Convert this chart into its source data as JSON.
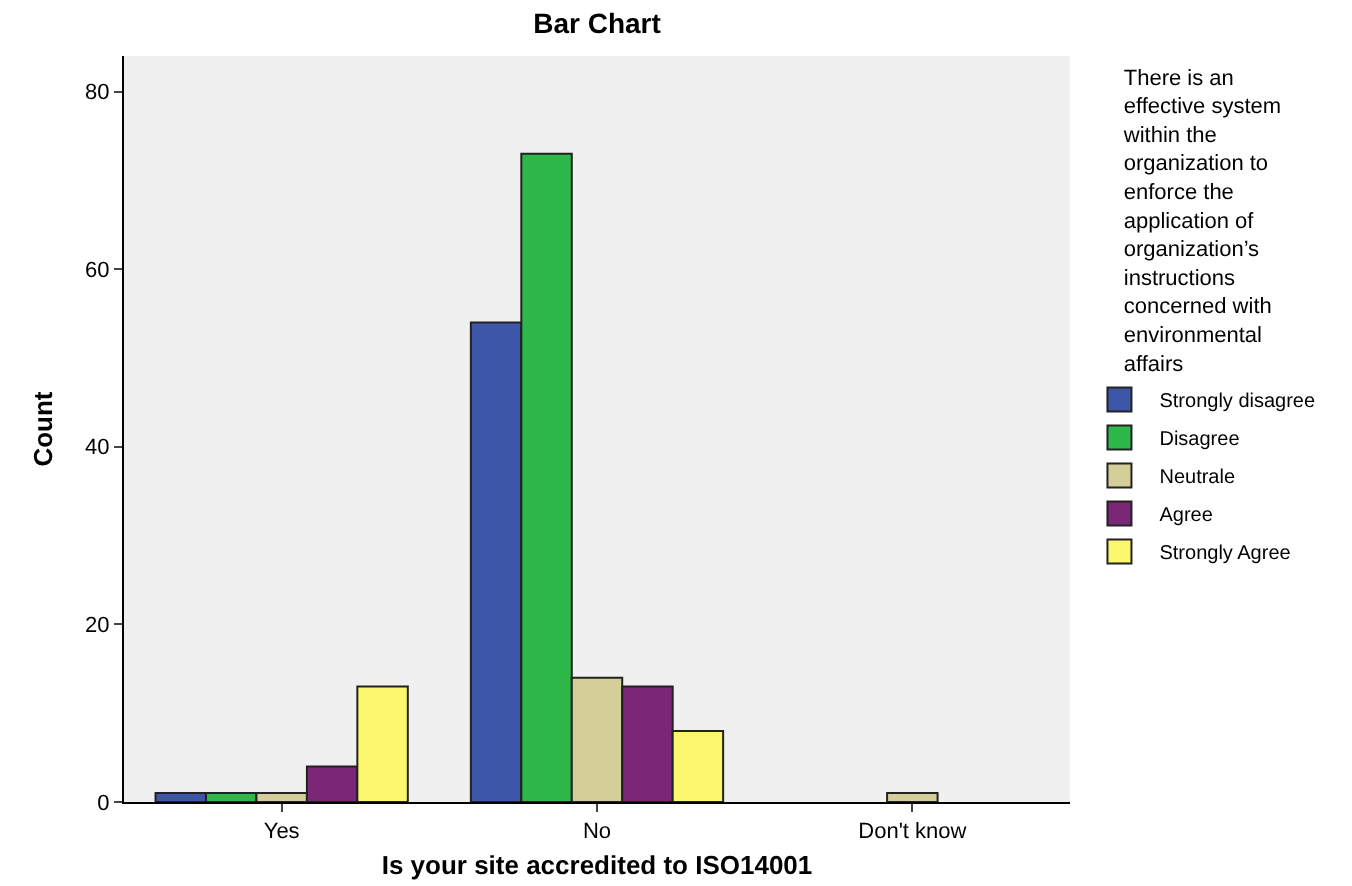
{
  "chart_data": {
    "type": "bar",
    "title": "Bar Chart",
    "xlabel": "Is your site accredited to ISO14001",
    "ylabel": "Count",
    "legend_title": "There is an effective system within the organization to enforce the application of organization’s instructions concerned with environmental affairs",
    "categories": [
      "Yes",
      "No",
      "Don't know"
    ],
    "series": [
      {
        "name": "Strongly disagree",
        "color": "#3d56a8",
        "values": [
          1,
          54,
          null
        ]
      },
      {
        "name": "Disagree",
        "color": "#2eb84a",
        "values": [
          1,
          73,
          null
        ]
      },
      {
        "name": "Neutrale",
        "color": "#d4cf98",
        "values": [
          1,
          14,
          1
        ]
      },
      {
        "name": "Agree",
        "color": "#7b2677",
        "values": [
          4,
          13,
          null
        ]
      },
      {
        "name": "Strongly Agree",
        "color": "#fcf76e",
        "values": [
          13,
          8,
          null
        ]
      }
    ],
    "ylim": [
      0,
      84
    ],
    "yticks": [
      0,
      20,
      40,
      60,
      80
    ],
    "grid": false,
    "legend": "right"
  }
}
